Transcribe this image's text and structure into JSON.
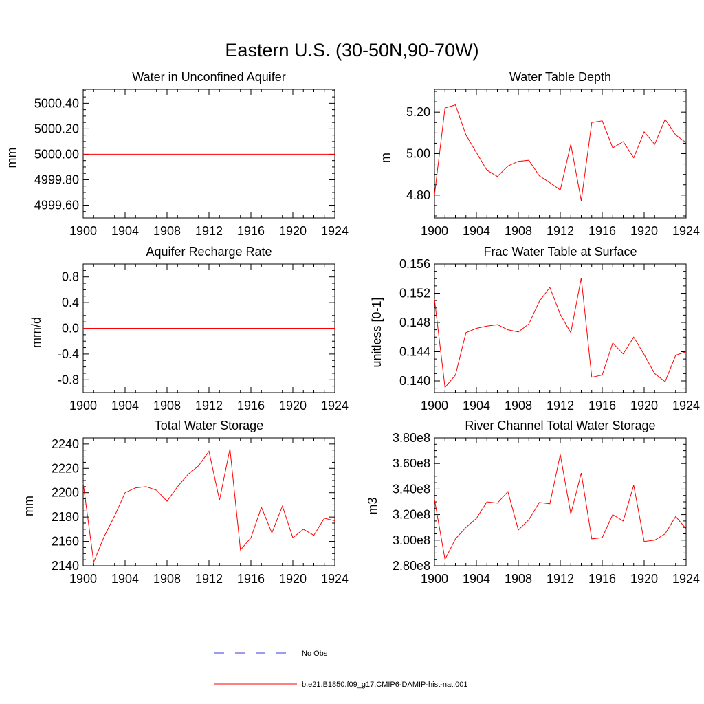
{
  "title": "Eastern U.S. (30-50N,90-70W)",
  "legend": {
    "entries": [
      {
        "label": "No Obs",
        "color": "#3a3ad0",
        "style": "dashed"
      },
      {
        "label": "b.e21.B1850.f09_g17.CMIP6-DAMIP-hist-nat.001",
        "color": "#ff0000",
        "style": "solid"
      }
    ]
  },
  "chart_data": [
    {
      "type": "line",
      "title": "Water in Unconfined Aquifer",
      "ylabel": "mm",
      "xlim": [
        1900,
        1924
      ],
      "ylim": [
        4999.5,
        5000.51
      ],
      "x_ticks": [
        1900,
        1904,
        1908,
        1912,
        1916,
        1920,
        1924
      ],
      "x_tick_labels": [
        "1900",
        "1904",
        "1908",
        "1912",
        "1916",
        "1920",
        "1924"
      ],
      "y_ticks": [
        4999.6,
        4999.8,
        5000.0,
        5000.2,
        5000.4
      ],
      "y_tick_labels": [
        "4999.60",
        "4999.80",
        "5000.00",
        "5000.20",
        "5000.40"
      ],
      "x": [
        1900,
        1901,
        1902,
        1903,
        1904,
        1905,
        1906,
        1907,
        1908,
        1909,
        1910,
        1911,
        1912,
        1913,
        1914,
        1915,
        1916,
        1917,
        1918,
        1919,
        1920,
        1921,
        1922,
        1923,
        1924
      ],
      "series": [
        {
          "name": "b.e21.B1850.f09_g17.CMIP6-DAMIP-hist-nat.001",
          "color": "#ff0000",
          "values": [
            5000,
            5000,
            5000,
            5000,
            5000,
            5000,
            5000,
            5000,
            5000,
            5000,
            5000,
            5000,
            5000,
            5000,
            5000,
            5000,
            5000,
            5000,
            5000,
            5000,
            5000,
            5000,
            5000,
            5000,
            5000
          ]
        }
      ]
    },
    {
      "type": "line",
      "title": "Water Table Depth",
      "ylabel": "m",
      "xlim": [
        1900,
        1924
      ],
      "ylim": [
        4.69,
        5.31
      ],
      "x_ticks": [
        1900,
        1904,
        1908,
        1912,
        1916,
        1920,
        1924
      ],
      "x_tick_labels": [
        "1900",
        "1904",
        "1908",
        "1912",
        "1916",
        "1920",
        "1924"
      ],
      "y_ticks": [
        4.8,
        5.0,
        5.2
      ],
      "y_tick_labels": [
        "4.80",
        "5.00",
        "5.20"
      ],
      "x": [
        1900,
        1901,
        1902,
        1903,
        1904,
        1905,
        1906,
        1907,
        1908,
        1909,
        1910,
        1911,
        1912,
        1913,
        1914,
        1915,
        1916,
        1917,
        1918,
        1919,
        1920,
        1921,
        1922,
        1923,
        1924
      ],
      "series": [
        {
          "name": "b.e21.B1850.f09_g17.CMIP6-DAMIP-hist-nat.001",
          "color": "#ff0000",
          "values": [
            4.8,
            5.22,
            5.235,
            5.09,
            5.005,
            4.92,
            4.89,
            4.94,
            4.963,
            4.968,
            4.893,
            4.86,
            4.825,
            5.045,
            4.773,
            5.15,
            5.158,
            5.028,
            5.058,
            4.98,
            5.105,
            5.045,
            5.165,
            5.09,
            5.053
          ]
        }
      ]
    },
    {
      "type": "line",
      "title": "Aquifer Recharge Rate",
      "ylabel": "mm/d",
      "xlim": [
        1900,
        1924
      ],
      "ylim": [
        -1.0,
        1.0
      ],
      "x_ticks": [
        1900,
        1904,
        1908,
        1912,
        1916,
        1920,
        1924
      ],
      "x_tick_labels": [
        "1900",
        "1904",
        "1908",
        "1912",
        "1916",
        "1920",
        "1924"
      ],
      "y_ticks": [
        -0.8,
        -0.4,
        0.0,
        0.4,
        0.8
      ],
      "y_tick_labels": [
        "-0.8",
        "-0.4",
        "0.0",
        "0.4",
        "0.8"
      ],
      "x": [
        1900,
        1901,
        1902,
        1903,
        1904,
        1905,
        1906,
        1907,
        1908,
        1909,
        1910,
        1911,
        1912,
        1913,
        1914,
        1915,
        1916,
        1917,
        1918,
        1919,
        1920,
        1921,
        1922,
        1923,
        1924
      ],
      "series": [
        {
          "name": "b.e21.B1850.f09_g17.CMIP6-DAMIP-hist-nat.001",
          "color": "#ff0000",
          "values": [
            0,
            0,
            0,
            0,
            0,
            0,
            0,
            0,
            0,
            0,
            0,
            0,
            0,
            0,
            0,
            0,
            0,
            0,
            0,
            0,
            0,
            0,
            0,
            0,
            0
          ]
        }
      ]
    },
    {
      "type": "line",
      "title": "Frac Water Table at Surface",
      "ylabel": "unitless [0-1]",
      "xlim": [
        1900,
        1924
      ],
      "ylim": [
        0.1384,
        0.156
      ],
      "x_ticks": [
        1900,
        1904,
        1908,
        1912,
        1916,
        1920,
        1924
      ],
      "x_tick_labels": [
        "1900",
        "1904",
        "1908",
        "1912",
        "1916",
        "1920",
        "1924"
      ],
      "y_ticks": [
        0.14,
        0.144,
        0.148,
        0.152,
        0.156
      ],
      "y_tick_labels": [
        "0.140",
        "0.144",
        "0.148",
        "0.152",
        "0.156"
      ],
      "x": [
        1900,
        1901,
        1902,
        1903,
        1904,
        1905,
        1906,
        1907,
        1908,
        1909,
        1910,
        1911,
        1912,
        1913,
        1914,
        1915,
        1916,
        1917,
        1918,
        1919,
        1920,
        1921,
        1922,
        1923,
        1924
      ],
      "series": [
        {
          "name": "b.e21.B1850.f09_g17.CMIP6-DAMIP-hist-nat.001",
          "color": "#ff0000",
          "values": [
            0.1512,
            0.1391,
            0.1408,
            0.1466,
            0.1472,
            0.1475,
            0.1477,
            0.147,
            0.1467,
            0.1478,
            0.1509,
            0.1528,
            0.1491,
            0.1466,
            0.1541,
            0.1405,
            0.1408,
            0.1452,
            0.1437,
            0.146,
            0.1436,
            0.141,
            0.1399,
            0.1435,
            0.144
          ]
        }
      ]
    },
    {
      "type": "line",
      "title": "Total Water Storage",
      "ylabel": "mm",
      "xlim": [
        1900,
        1924
      ],
      "ylim": [
        2140,
        2245
      ],
      "x_ticks": [
        1900,
        1904,
        1908,
        1912,
        1916,
        1920,
        1924
      ],
      "x_tick_labels": [
        "1900",
        "1904",
        "1908",
        "1912",
        "1916",
        "1920",
        "1924"
      ],
      "y_ticks": [
        2140,
        2160,
        2180,
        2200,
        2220,
        2240
      ],
      "y_tick_labels": [
        "2140",
        "2160",
        "2180",
        "2200",
        "2220",
        "2240"
      ],
      "x": [
        1900,
        1901,
        1902,
        1903,
        1904,
        1905,
        1906,
        1907,
        1908,
        1909,
        1910,
        1911,
        1912,
        1913,
        1914,
        1915,
        1916,
        1917,
        1918,
        1919,
        1920,
        1921,
        1922,
        1923,
        1924
      ],
      "series": [
        {
          "name": "b.e21.B1850.f09_g17.CMIP6-DAMIP-hist-nat.001",
          "color": "#ff0000",
          "values": [
            2208,
            2143,
            2164,
            2181,
            2200,
            2204,
            2205,
            2202,
            2193,
            2205,
            2215,
            2222,
            2234,
            2194,
            2236,
            2153,
            2163,
            2188,
            2167,
            2189,
            2163,
            2170,
            2165,
            2179,
            2177
          ]
        }
      ]
    },
    {
      "type": "line",
      "title": "River Channel Total Water Storage",
      "ylabel": "m3",
      "xlim": [
        1900,
        1924
      ],
      "ylim": [
        280000000,
        380000000
      ],
      "x_ticks": [
        1900,
        1904,
        1908,
        1912,
        1916,
        1920,
        1924
      ],
      "x_tick_labels": [
        "1900",
        "1904",
        "1908",
        "1912",
        "1916",
        "1920",
        "1924"
      ],
      "y_ticks": [
        280000000,
        300000000,
        320000000,
        340000000,
        360000000,
        380000000
      ],
      "y_tick_labels": [
        "2.80e8",
        "3.00e8",
        "3.20e8",
        "3.40e8",
        "3.60e8",
        "3.80e8"
      ],
      "x": [
        1900,
        1901,
        1902,
        1903,
        1904,
        1905,
        1906,
        1907,
        1908,
        1909,
        1910,
        1911,
        1912,
        1913,
        1914,
        1915,
        1916,
        1917,
        1918,
        1919,
        1920,
        1921,
        1922,
        1923,
        1924
      ],
      "series": [
        {
          "name": "b.e21.B1850.f09_g17.CMIP6-DAMIP-hist-nat.001",
          "color": "#ff0000",
          "values": [
            332000000,
            285000000,
            301000000,
            310000000,
            317000000,
            330000000,
            329000000,
            338000000,
            308000000,
            316000000,
            329500000,
            328500000,
            367000000,
            320500000,
            352500000,
            301000000,
            302000000,
            320000000,
            315000000,
            343000000,
            299000000,
            300000000,
            305000000,
            318500000,
            309000000
          ]
        }
      ]
    }
  ]
}
